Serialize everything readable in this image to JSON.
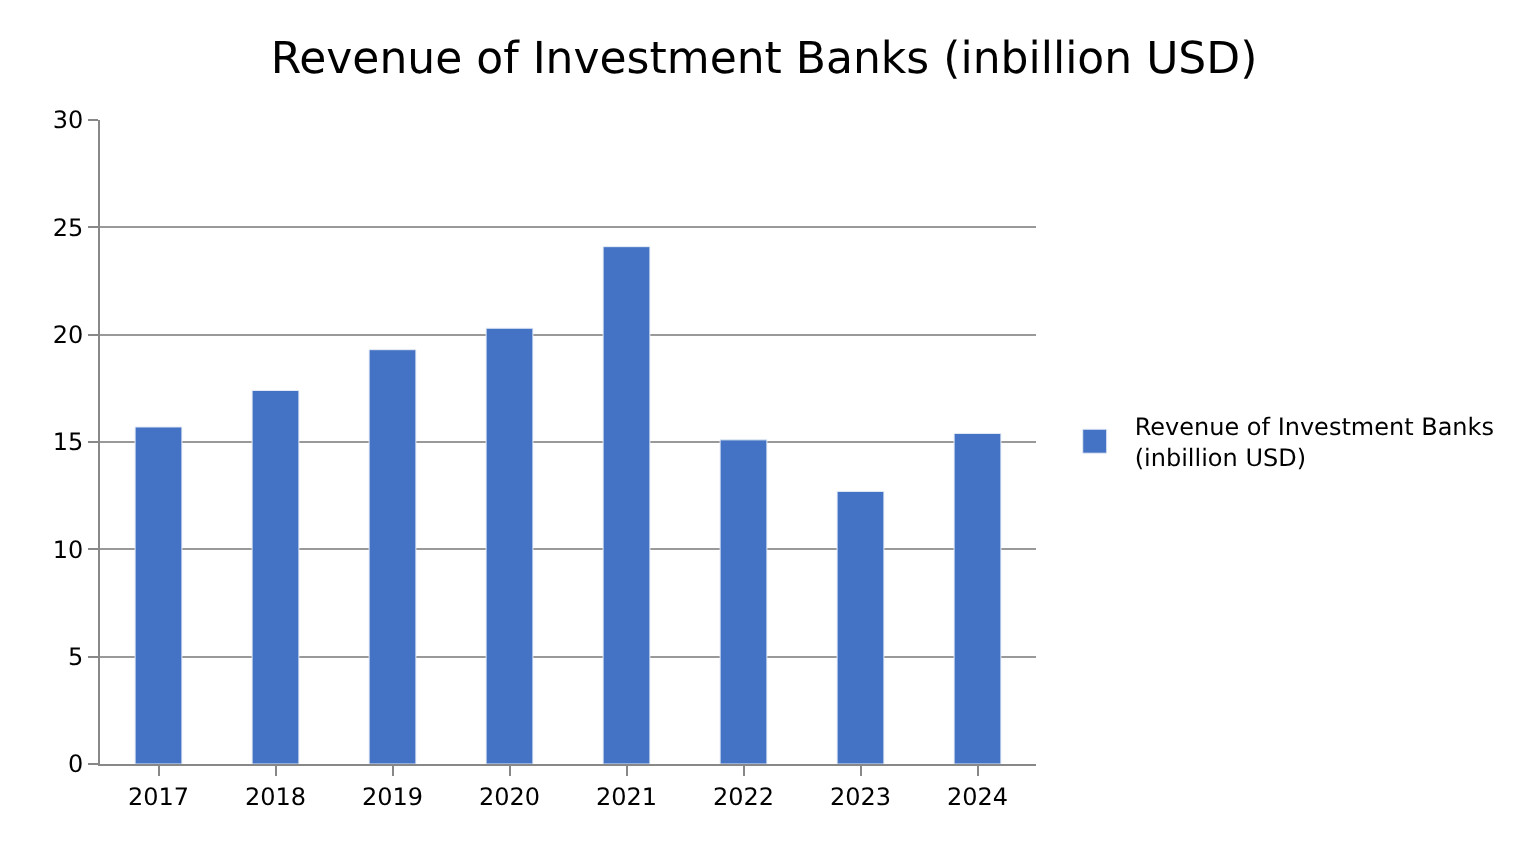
{
  "chart_data": {
    "type": "bar",
    "title": "Revenue of Investment Banks (inbillion USD)",
    "categories": [
      "2017",
      "2018",
      "2019",
      "2020",
      "2021",
      "2022",
      "2023",
      "2024"
    ],
    "series": [
      {
        "name": "Revenue of Investment Banks (inbillion USD)",
        "color": "#4472c4",
        "values": [
          15.7,
          17.4,
          19.3,
          20.3,
          24.1,
          15.1,
          12.7,
          15.4
        ]
      }
    ],
    "ylim": [
      0,
      30
    ],
    "yticks": [
      0,
      5,
      10,
      15,
      20,
      25,
      30
    ],
    "grid": "y",
    "legend": "right"
  }
}
